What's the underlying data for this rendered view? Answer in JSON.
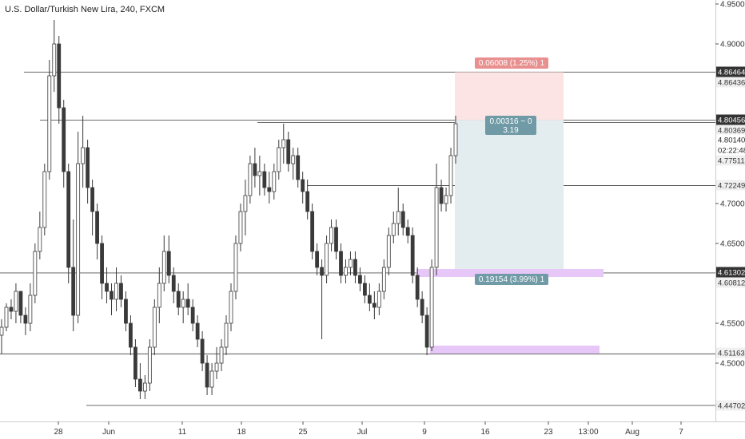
{
  "title": "U.S. Dollar/Turkish New Lira, 240, FXCM",
  "colors": {
    "background": "#ffffff",
    "candle": "#3a3a3a",
    "level_line": "#555555",
    "grid_axis_border": "#cccccc",
    "stop_zone": "#fbe4e3",
    "stop_label_bg": "#e8908f",
    "target_zone": "#e3ecef",
    "target_label_bg": "#6f9aa6",
    "purple_zone": "#e6c7f7",
    "price_tag_dark": "#333333",
    "price_tag_light": "#f0f0f0"
  },
  "chart_data": {
    "type": "candlestick",
    "title": "U.S. Dollar/Turkish New Lira, 240, FXCM",
    "ylim": [
      4.405,
      4.955
    ],
    "y_ticks": [
      "4.95000",
      "4.90000",
      "4.70000",
      "4.65000",
      "4.55000",
      "4.50000"
    ],
    "x_ticks": [
      "28",
      "Jun",
      "11",
      "18",
      "25",
      "Jul",
      "9",
      "16",
      "23",
      "13:00",
      "Aug",
      "7"
    ],
    "series": [
      {
        "values": [
          [
            4.535,
            4.555,
            4.512,
            4.545
          ],
          [
            4.545,
            4.575,
            4.54,
            4.57
          ],
          [
            4.57,
            4.58,
            4.555,
            4.565
          ],
          [
            4.565,
            4.6,
            4.55,
            4.59
          ],
          [
            4.59,
            4.585,
            4.55,
            4.56
          ],
          [
            4.56,
            4.57,
            4.535,
            4.55
          ],
          [
            4.55,
            4.6,
            4.54,
            4.585
          ],
          [
            4.585,
            4.65,
            4.575,
            4.64
          ],
          [
            4.64,
            4.69,
            4.63,
            4.67
          ],
          [
            4.67,
            4.75,
            4.66,
            4.74
          ],
          [
            4.74,
            4.88,
            4.73,
            4.86
          ],
          [
            4.86,
            4.93,
            4.84,
            4.9
          ],
          [
            4.9,
            4.91,
            4.8,
            4.82
          ],
          [
            4.82,
            4.83,
            4.72,
            4.74
          ],
          [
            4.74,
            4.75,
            4.6,
            4.62
          ],
          [
            4.62,
            4.68,
            4.54,
            4.56
          ],
          [
            4.56,
            4.79,
            4.55,
            4.75
          ],
          [
            4.75,
            4.81,
            4.72,
            4.77
          ],
          [
            4.77,
            4.78,
            4.7,
            4.72
          ],
          [
            4.72,
            4.73,
            4.66,
            4.69
          ],
          [
            4.69,
            4.7,
            4.63,
            4.65
          ],
          [
            4.65,
            4.66,
            4.58,
            4.6
          ],
          [
            4.6,
            4.62,
            4.575,
            4.59
          ],
          [
            4.59,
            4.6,
            4.56,
            4.58
          ],
          [
            4.58,
            4.62,
            4.565,
            4.6
          ],
          [
            4.6,
            4.61,
            4.57,
            4.58
          ],
          [
            4.58,
            4.59,
            4.54,
            4.55
          ],
          [
            4.55,
            4.56,
            4.51,
            4.52
          ],
          [
            4.52,
            4.53,
            4.47,
            4.48
          ],
          [
            4.48,
            4.5,
            4.455,
            4.465
          ],
          [
            4.465,
            4.485,
            4.455,
            4.475
          ],
          [
            4.475,
            4.53,
            4.465,
            4.52
          ],
          [
            4.52,
            4.58,
            4.51,
            4.57
          ],
          [
            4.57,
            4.62,
            4.55,
            4.6
          ],
          [
            4.6,
            4.66,
            4.59,
            4.64
          ],
          [
            4.64,
            4.66,
            4.6,
            4.61
          ],
          [
            4.61,
            4.62,
            4.575,
            4.59
          ],
          [
            4.59,
            4.6,
            4.56,
            4.57
          ],
          [
            4.57,
            4.59,
            4.55,
            4.58
          ],
          [
            4.58,
            4.6,
            4.56,
            4.57
          ],
          [
            4.57,
            4.58,
            4.54,
            4.55
          ],
          [
            4.55,
            4.56,
            4.52,
            4.53
          ],
          [
            4.53,
            4.54,
            4.49,
            4.5
          ],
          [
            4.5,
            4.51,
            4.46,
            4.47
          ],
          [
            4.47,
            4.5,
            4.46,
            4.49
          ],
          [
            4.49,
            4.52,
            4.48,
            4.5
          ],
          [
            4.5,
            4.53,
            4.49,
            4.52
          ],
          [
            4.52,
            4.56,
            4.51,
            4.55
          ],
          [
            4.55,
            4.6,
            4.54,
            4.59
          ],
          [
            4.59,
            4.66,
            4.58,
            4.65
          ],
          [
            4.65,
            4.7,
            4.64,
            4.69
          ],
          [
            4.69,
            4.73,
            4.66,
            4.71
          ],
          [
            4.71,
            4.76,
            4.7,
            4.75
          ],
          [
            4.75,
            4.77,
            4.72,
            4.735
          ],
          [
            4.735,
            4.76,
            4.71,
            4.74
          ],
          [
            4.74,
            4.75,
            4.71,
            4.72
          ],
          [
            4.72,
            4.74,
            4.7,
            4.715
          ],
          [
            4.715,
            4.75,
            4.705,
            4.74
          ],
          [
            4.74,
            4.78,
            4.73,
            4.77
          ],
          [
            4.77,
            4.8,
            4.75,
            4.78
          ],
          [
            4.78,
            4.79,
            4.74,
            4.75
          ],
          [
            4.75,
            4.77,
            4.73,
            4.76
          ],
          [
            4.76,
            4.77,
            4.72,
            4.73
          ],
          [
            4.73,
            4.74,
            4.7,
            4.715
          ],
          [
            4.715,
            4.73,
            4.68,
            4.69
          ],
          [
            4.69,
            4.7,
            4.63,
            4.64
          ],
          [
            4.64,
            4.65,
            4.61,
            4.62
          ],
          [
            4.62,
            4.63,
            4.53,
            4.61
          ],
          [
            4.61,
            4.66,
            4.6,
            4.65
          ],
          [
            4.65,
            4.68,
            4.64,
            4.67
          ],
          [
            4.67,
            4.68,
            4.63,
            4.64
          ],
          [
            4.64,
            4.65,
            4.6,
            4.61
          ],
          [
            4.61,
            4.63,
            4.6,
            4.62
          ],
          [
            4.62,
            4.64,
            4.61,
            4.63
          ],
          [
            4.63,
            4.64,
            4.6,
            4.61
          ],
          [
            4.61,
            4.62,
            4.59,
            4.6
          ],
          [
            4.6,
            4.61,
            4.575,
            4.585
          ],
          [
            4.585,
            4.6,
            4.565,
            4.575
          ],
          [
            4.575,
            4.59,
            4.555,
            4.57
          ],
          [
            4.57,
            4.6,
            4.56,
            4.59
          ],
          [
            4.59,
            4.63,
            4.58,
            4.62
          ],
          [
            4.62,
            4.67,
            4.61,
            4.66
          ],
          [
            4.66,
            4.69,
            4.65,
            4.675
          ],
          [
            4.675,
            4.72,
            4.66,
            4.69
          ],
          [
            4.69,
            4.7,
            4.66,
            4.67
          ],
          [
            4.67,
            4.68,
            4.65,
            4.66
          ],
          [
            4.66,
            4.67,
            4.6,
            4.61
          ],
          [
            4.61,
            4.62,
            4.57,
            4.58
          ],
          [
            4.58,
            4.59,
            4.55,
            4.56
          ],
          [
            4.56,
            4.57,
            4.51,
            4.52
          ],
          [
            4.52,
            4.63,
            4.515,
            4.62
          ],
          [
            4.62,
            4.75,
            4.61,
            4.72
          ],
          [
            4.72,
            4.73,
            4.69,
            4.7
          ],
          [
            4.7,
            4.72,
            4.69,
            4.71
          ],
          [
            4.71,
            4.77,
            4.7,
            4.76
          ],
          [
            4.76,
            4.81,
            4.75,
            4.8
          ]
        ]
      }
    ],
    "price_tags": [
      {
        "label": "4.86464",
        "style": "dark"
      },
      {
        "label": "4.86436",
        "style": "light"
      },
      {
        "label": "4.80456",
        "style": "dark"
      },
      {
        "label": "4.80369",
        "style": "light"
      },
      {
        "label": "4.80140",
        "style": "white"
      },
      {
        "label": "02:22:48",
        "style": "white"
      },
      {
        "label": "4.77511",
        "style": "light"
      },
      {
        "label": "4.72249",
        "style": "light"
      },
      {
        "label": "4.61302",
        "style": "dark"
      },
      {
        "label": "4.60812",
        "style": "light"
      },
      {
        "label": "4.51163",
        "style": "light"
      },
      {
        "label": "4.44702",
        "style": "light"
      }
    ],
    "horizontal_levels": [
      4.86464,
      4.80456,
      4.8014,
      4.72249,
      4.61302,
      4.51163,
      4.44702
    ],
    "position": {
      "entry": 4.80456,
      "stop": 4.86464,
      "target": 4.61302,
      "stop_label": "0.06008 (1.25%) 1",
      "entry_label_line1": "0.00316 ~ 0",
      "entry_label_line2": "3.19",
      "target_label": "0.19154 (3.99%) 1"
    },
    "zones": [
      {
        "name": "upper-purple-zone",
        "low": 4.608,
        "high": 4.618
      },
      {
        "name": "lower-purple-zone",
        "low": 4.512,
        "high": 4.522
      }
    ]
  }
}
